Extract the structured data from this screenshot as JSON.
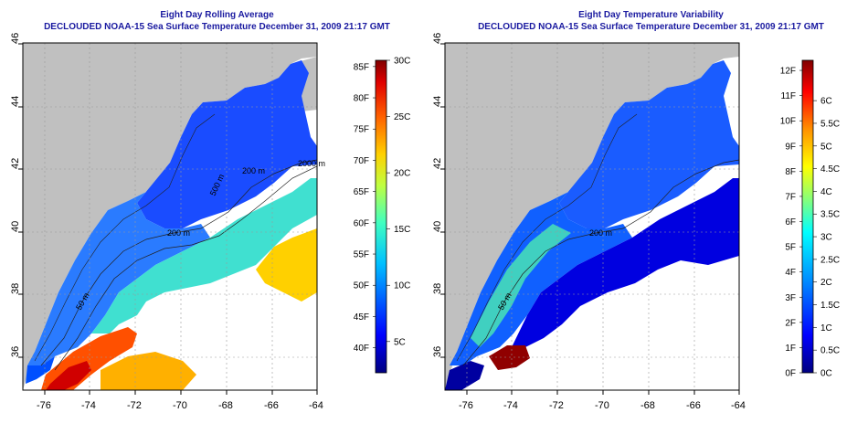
{
  "panels": [
    {
      "id": "rolling-average",
      "title": "Eight Day Rolling Average",
      "subtitle": "DECLOUDED NOAA-15 Sea Surface Temperature December 31, 2009 21:17 GMT",
      "x_ticks": [
        "-76",
        "-74",
        "-72",
        "-70",
        "-68",
        "-66",
        "-64"
      ],
      "y_ticks": [
        "36",
        "38",
        "40",
        "42",
        "44",
        "46"
      ],
      "colorbar_f": [
        "40F",
        "45F",
        "50F",
        "55F",
        "60F",
        "65F",
        "70F",
        "75F",
        "80F",
        "85F"
      ],
      "colorbar_c": [
        "5C",
        "10C",
        "15C",
        "20C",
        "25C",
        "30C"
      ],
      "contour_labels": [
        "200 m",
        "2000 m",
        "200 m",
        "50 m",
        "500 m"
      ]
    },
    {
      "id": "temperature-variability",
      "title": "Eight Day Temperature Variability",
      "subtitle": "DECLOUDED NOAA-15 Sea Surface Temperature December 31, 2009 21:17 GMT",
      "x_ticks": [
        "-76",
        "-74",
        "-72",
        "-70",
        "-68",
        "-66",
        "-64"
      ],
      "y_ticks": [
        "36",
        "38",
        "40",
        "42",
        "44",
        "46"
      ],
      "colorbar_f": [
        "0F",
        "1F",
        "2F",
        "3F",
        "4F",
        "5F",
        "6F",
        "7F",
        "8F",
        "9F",
        "10F",
        "11F",
        "12F"
      ],
      "colorbar_c": [
        "0C",
        "0.5C",
        "1C",
        "1.5C",
        "2C",
        "2.5C",
        "3C",
        "3.5C",
        "4C",
        "4.5C",
        "5C",
        "5.5C",
        "6C"
      ],
      "contour_labels": [
        "200 m",
        "50 m"
      ]
    }
  ],
  "colors": {
    "land": "#c0c0c0",
    "no_data": "#ffffff",
    "title_text": "#1a1aa0",
    "sst_scale": [
      "#00007f",
      "#0000ff",
      "#0080ff",
      "#00ffff",
      "#80ff80",
      "#ffff00",
      "#ff8000",
      "#ff0000",
      "#7f0000"
    ]
  },
  "map_extent": {
    "lon": [
      -77,
      -63
    ],
    "lat": [
      35,
      46
    ]
  }
}
